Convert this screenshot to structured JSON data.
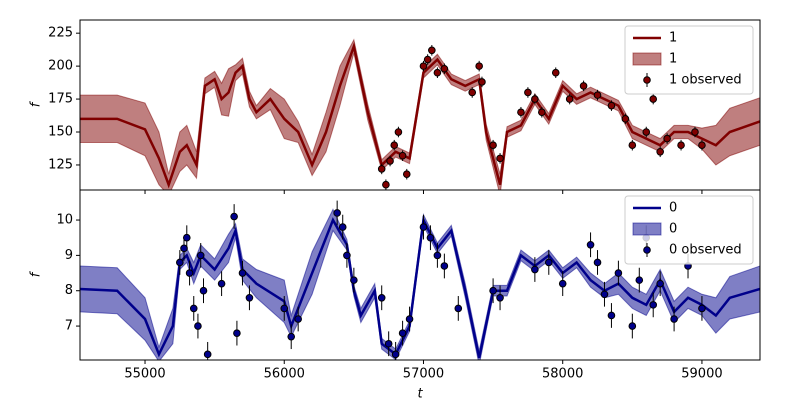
{
  "chart_data": [
    {
      "type": "line",
      "ylabel": "f",
      "xlim": [
        54533,
        59417
      ],
      "ylim": [
        106,
        235
      ],
      "yticks": [
        125,
        150,
        175,
        200,
        225
      ],
      "legend": "upper right",
      "series": [
        {
          "name": "1",
          "color": "#800000",
          "x": [
            54533,
            54800,
            55000,
            55100,
            55170,
            55250,
            55300,
            55370,
            55430,
            55500,
            55550,
            55600,
            55650,
            55700,
            55750,
            55800,
            55900,
            56000,
            56100,
            56200,
            56300,
            56400,
            56500,
            56600,
            56700,
            56800,
            56900,
            57000,
            57100,
            57200,
            57300,
            57400,
            57450,
            57550,
            57600,
            57700,
            57800,
            57900,
            58000,
            58100,
            58200,
            58300,
            58400,
            58500,
            58600,
            58700,
            58800,
            58900,
            59000,
            59100,
            59200,
            59417
          ],
          "values": [
            160,
            160,
            152,
            130,
            110,
            135,
            140,
            125,
            185,
            190,
            175,
            180,
            195,
            200,
            175,
            165,
            175,
            160,
            150,
            125,
            150,
            185,
            215,
            165,
            125,
            135,
            130,
            195,
            205,
            190,
            185,
            190,
            150,
            110,
            150,
            155,
            175,
            160,
            185,
            175,
            180,
            175,
            170,
            150,
            145,
            140,
            150,
            150,
            145,
            140,
            150,
            158
          ]
        },
        {
          "name": "1",
          "color": "#800000",
          "alpha": 0.5,
          "x": [
            54533,
            54800,
            55000,
            55100,
            55170,
            55250,
            55300,
            55370,
            55430,
            55500,
            55550,
            55600,
            55650,
            55700,
            55750,
            55800,
            55900,
            56000,
            56100,
            56200,
            56300,
            56400,
            56500,
            56600,
            56700,
            56800,
            56900,
            57000,
            57100,
            57200,
            57300,
            57400,
            57450,
            57550,
            57600,
            57700,
            57800,
            57900,
            58000,
            58100,
            58200,
            58300,
            58400,
            58500,
            58600,
            58700,
            58800,
            58900,
            59000,
            59100,
            59200,
            59417
          ],
          "lower": [
            142,
            142,
            132,
            110,
            102,
            120,
            125,
            115,
            179,
            184,
            163,
            162,
            189,
            194,
            169,
            160,
            167,
            145,
            142,
            117,
            135,
            170,
            210,
            159,
            121,
            131,
            126,
            191,
            201,
            186,
            181,
            186,
            144,
            102,
            146,
            151,
            171,
            156,
            181,
            171,
            176,
            171,
            166,
            145,
            140,
            135,
            145,
            145,
            137,
            125,
            132,
            140
          ],
          "upper": [
            178,
            178,
            172,
            150,
            118,
            150,
            155,
            135,
            191,
            196,
            187,
            198,
            201,
            206,
            181,
            170,
            183,
            175,
            158,
            133,
            165,
            200,
            220,
            171,
            129,
            139,
            134,
            199,
            209,
            194,
            189,
            194,
            156,
            118,
            154,
            159,
            179,
            164,
            189,
            179,
            184,
            179,
            174,
            155,
            150,
            145,
            155,
            155,
            153,
            155,
            168,
            176
          ]
        },
        {
          "name": "1 observed",
          "color": "#000000",
          "x": [
            56700,
            56730,
            56760,
            56790,
            56820,
            56850,
            56880,
            57000,
            57030,
            57060,
            57100,
            57150,
            57350,
            57400,
            57420,
            57500,
            57550,
            57700,
            57750,
            57800,
            57850,
            57950,
            58050,
            58150,
            58250,
            58350,
            58450,
            58500,
            58600,
            58650,
            58700,
            58750,
            58850,
            58950,
            59000
          ],
          "values": [
            122,
            110,
            128,
            140,
            150,
            132,
            118,
            200,
            205,
            212,
            195,
            198,
            180,
            200,
            188,
            140,
            130,
            165,
            180,
            175,
            165,
            195,
            175,
            185,
            178,
            170,
            160,
            140,
            150,
            175,
            135,
            145,
            140,
            150,
            140
          ],
          "errors": [
            4,
            4,
            4,
            4,
            4,
            4,
            4,
            4,
            4,
            4,
            4,
            4,
            4,
            4,
            4,
            4,
            4,
            4,
            4,
            4,
            4,
            4,
            4,
            4,
            4,
            4,
            4,
            4,
            4,
            4,
            4,
            4,
            4,
            4,
            4
          ]
        }
      ]
    },
    {
      "type": "line",
      "ylabel": "f",
      "xlabel": "t",
      "xlim": [
        54533,
        59417
      ],
      "ylim": [
        6.04,
        10.85
      ],
      "yticks": [
        7,
        8,
        9,
        10
      ],
      "xticks": [
        55000,
        56000,
        57000,
        58000,
        59000
      ],
      "legend": "upper right",
      "series": [
        {
          "name": "0",
          "color": "#00008b",
          "x": [
            54533,
            54800,
            55000,
            55100,
            55200,
            55250,
            55300,
            55350,
            55400,
            55500,
            55600,
            55650,
            55700,
            55800,
            56000,
            56050,
            56200,
            56350,
            56450,
            56500,
            56550,
            56650,
            56700,
            56800,
            56900,
            57000,
            57100,
            57200,
            57300,
            57400,
            57500,
            57600,
            57700,
            57800,
            57900,
            58000,
            58100,
            58200,
            58300,
            58400,
            58500,
            58600,
            58700,
            58800,
            58900,
            59000,
            59100,
            59200,
            59417
          ],
          "values": [
            8.05,
            8.0,
            7.2,
            6.2,
            7.0,
            8.8,
            9.0,
            8.5,
            9.0,
            8.6,
            9.2,
            9.7,
            8.6,
            8.2,
            7.7,
            7.0,
            8.5,
            10.0,
            9.3,
            8.0,
            7.3,
            8.0,
            6.5,
            6.2,
            7.0,
            10.0,
            9.2,
            9.7,
            8.0,
            6.1,
            8.0,
            8.0,
            9.0,
            8.7,
            9.0,
            8.5,
            8.8,
            8.3,
            8.0,
            8.2,
            7.8,
            7.6,
            8.3,
            7.4,
            7.8,
            7.6,
            7.3,
            7.8,
            8.05
          ]
        },
        {
          "name": "0",
          "color": "#00008b",
          "alpha": 0.5,
          "x": [
            54533,
            54800,
            55000,
            55100,
            55200,
            55250,
            55300,
            55350,
            55400,
            55500,
            55600,
            55650,
            55700,
            55800,
            56000,
            56050,
            56200,
            56350,
            56450,
            56500,
            56550,
            56650,
            56700,
            56800,
            56900,
            57000,
            57100,
            57200,
            57300,
            57400,
            57500,
            57600,
            57700,
            57800,
            57900,
            58000,
            58100,
            58200,
            58300,
            58400,
            58500,
            58600,
            58700,
            58800,
            58900,
            59000,
            59100,
            59200,
            59417
          ],
          "lower": [
            7.4,
            7.35,
            6.6,
            6.0,
            6.5,
            8.6,
            8.8,
            8.2,
            8.7,
            8.3,
            8.8,
            9.5,
            8.3,
            7.8,
            7.1,
            6.7,
            7.9,
            9.7,
            9.15,
            7.85,
            7.1,
            7.8,
            6.35,
            6.05,
            6.85,
            9.85,
            9.05,
            9.55,
            7.8,
            5.9,
            7.85,
            7.85,
            8.85,
            8.55,
            8.85,
            8.35,
            8.65,
            8.1,
            7.8,
            7.9,
            7.5,
            7.3,
            8.0,
            7.1,
            7.5,
            7.3,
            6.8,
            7.2,
            7.4
          ],
          "upper": [
            8.7,
            8.65,
            7.8,
            6.4,
            7.5,
            9.0,
            9.2,
            8.8,
            9.3,
            8.9,
            9.6,
            9.9,
            8.9,
            8.6,
            8.3,
            7.3,
            9.1,
            10.3,
            9.45,
            8.15,
            7.5,
            8.2,
            6.65,
            6.35,
            7.15,
            10.15,
            9.35,
            9.85,
            8.2,
            6.3,
            8.15,
            8.15,
            9.15,
            8.85,
            9.15,
            8.65,
            8.95,
            8.5,
            8.2,
            8.5,
            8.1,
            7.9,
            8.6,
            7.7,
            8.1,
            7.9,
            7.8,
            8.4,
            8.7
          ]
        },
        {
          "name": "0 observed",
          "color": "#000000",
          "x": [
            55250,
            55280,
            55300,
            55320,
            55350,
            55380,
            55400,
            55420,
            55450,
            55550,
            55640,
            55660,
            55700,
            55750,
            56000,
            56050,
            56100,
            56380,
            56420,
            56450,
            56500,
            56700,
            56750,
            56800,
            56850,
            56900,
            57000,
            57050,
            57100,
            57150,
            57250,
            57500,
            57550,
            57800,
            57900,
            58000,
            58200,
            58250,
            58300,
            58350,
            58400,
            58500,
            58550,
            58600,
            58650,
            58700,
            58800,
            58900,
            59000
          ],
          "values": [
            8.8,
            9.2,
            9.5,
            8.5,
            7.5,
            7.0,
            9.0,
            8.0,
            6.2,
            8.2,
            10.1,
            6.8,
            8.5,
            7.8,
            7.5,
            6.7,
            7.2,
            10.2,
            9.8,
            9.0,
            8.3,
            7.8,
            6.5,
            6.2,
            6.8,
            7.2,
            9.8,
            9.5,
            9.0,
            8.7,
            7.5,
            8.0,
            7.8,
            8.6,
            8.8,
            8.2,
            9.3,
            8.8,
            7.9,
            7.3,
            8.5,
            7.0,
            8.3,
            9.5,
            7.6,
            8.2,
            7.2,
            8.7,
            7.5
          ],
          "errors": [
            0.35,
            0.35,
            0.35,
            0.35,
            0.35,
            0.35,
            0.35,
            0.35,
            0.35,
            0.35,
            0.35,
            0.35,
            0.35,
            0.35,
            0.35,
            0.35,
            0.35,
            0.35,
            0.35,
            0.35,
            0.35,
            0.35,
            0.35,
            0.35,
            0.35,
            0.35,
            0.35,
            0.35,
            0.35,
            0.35,
            0.35,
            0.35,
            0.35,
            0.35,
            0.35,
            0.35,
            0.35,
            0.35,
            0.35,
            0.35,
            0.35,
            0.35,
            0.35,
            0.35,
            0.35,
            0.35,
            0.35,
            0.35,
            0.35
          ]
        }
      ]
    }
  ]
}
